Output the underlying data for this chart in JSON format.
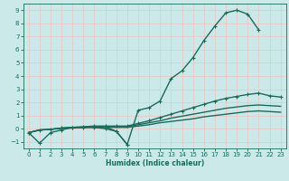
{
  "title": "",
  "xlabel": "Humidex (Indice chaleur)",
  "ylabel": "",
  "bg_color": "#cce9e9",
  "grid_color": "#e8c8c8",
  "line_color": "#1a6b5a",
  "xlim": [
    -0.5,
    23.5
  ],
  "ylim": [
    -1.5,
    9.5
  ],
  "xticks": [
    0,
    1,
    2,
    3,
    4,
    5,
    6,
    7,
    8,
    9,
    10,
    11,
    12,
    13,
    14,
    15,
    16,
    17,
    18,
    19,
    20,
    21,
    22,
    23
  ],
  "yticks": [
    -1,
    0,
    1,
    2,
    3,
    4,
    5,
    6,
    7,
    8,
    9
  ],
  "series": [
    {
      "x": [
        0,
        1,
        2,
        3,
        4,
        5,
        6,
        7,
        8,
        9,
        10,
        11,
        12,
        13,
        14,
        15,
        16,
        17,
        18,
        19,
        20,
        21,
        22,
        23
      ],
      "y": [
        -0.3,
        -1.1,
        -0.3,
        -0.1,
        0.1,
        0.1,
        0.1,
        0.0,
        -0.2,
        -1.2,
        1.4,
        1.6,
        2.1,
        3.8,
        4.4,
        5.4,
        6.7,
        7.8,
        8.8,
        9.0,
        8.7,
        7.5,
        null,
        null
      ],
      "has_markers": true,
      "markersize": 2.5,
      "linewidth": 1.0
    },
    {
      "x": [
        0,
        1,
        2,
        3,
        4,
        5,
        6,
        7,
        8,
        9,
        10,
        11,
        12,
        13,
        14,
        15,
        16,
        17,
        18,
        19,
        20,
        21,
        22,
        23
      ],
      "y": [
        -0.3,
        -0.1,
        -0.05,
        0.05,
        0.1,
        0.15,
        0.2,
        0.2,
        0.2,
        0.2,
        0.4,
        0.6,
        0.85,
        1.1,
        1.35,
        1.6,
        1.85,
        2.1,
        2.3,
        2.45,
        2.6,
        2.7,
        2.5,
        2.4
      ],
      "has_markers": true,
      "markersize": 2.5,
      "linewidth": 1.0
    },
    {
      "x": [
        0,
        1,
        2,
        3,
        4,
        5,
        6,
        7,
        8,
        9,
        10,
        11,
        12,
        13,
        14,
        15,
        16,
        17,
        18,
        19,
        20,
        21,
        22,
        23
      ],
      "y": [
        -0.3,
        -0.1,
        -0.05,
        0.05,
        0.1,
        0.12,
        0.15,
        0.15,
        0.15,
        0.15,
        0.3,
        0.45,
        0.6,
        0.8,
        0.95,
        1.1,
        1.25,
        1.4,
        1.55,
        1.65,
        1.75,
        1.8,
        1.75,
        1.7
      ],
      "has_markers": false,
      "markersize": 0,
      "linewidth": 1.0
    },
    {
      "x": [
        0,
        1,
        2,
        3,
        4,
        5,
        6,
        7,
        8,
        9,
        10,
        11,
        12,
        13,
        14,
        15,
        16,
        17,
        18,
        19,
        20,
        21,
        22,
        23
      ],
      "y": [
        -0.3,
        -0.1,
        -0.05,
        0.02,
        0.05,
        0.08,
        0.1,
        0.1,
        0.1,
        0.1,
        0.2,
        0.3,
        0.45,
        0.55,
        0.65,
        0.75,
        0.9,
        1.0,
        1.1,
        1.2,
        1.3,
        1.35,
        1.3,
        1.25
      ],
      "has_markers": false,
      "markersize": 0,
      "linewidth": 1.0
    },
    {
      "x": [
        7,
        8,
        9
      ],
      "y": [
        0.15,
        -0.2,
        -1.2
      ],
      "has_markers": true,
      "markersize": 2.5,
      "linewidth": 1.0
    }
  ]
}
